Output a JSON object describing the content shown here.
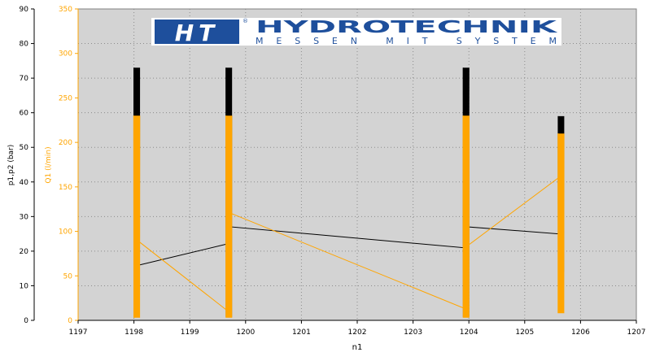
{
  "logo": {
    "brand": "HYDROTECHNIK",
    "tagline": "MESSEN MIT SYSTEM",
    "mark": "HT",
    "registered": "®"
  },
  "colors": {
    "plot_background": "#d3d3d3",
    "pressure_series": "#000000",
    "flow_series": "#ffa500",
    "logo_blue": "#1e4f9c",
    "left_axis_text": "#000000",
    "right_axis_text": "#ffa500"
  },
  "chart_data": {
    "type": "line",
    "xlabel": "n1",
    "ylabel_left": "p1,p2 (bar)",
    "ylabel_right": "Q1 (l/min)",
    "xlim": [
      1197,
      1207
    ],
    "ylim_left": [
      0,
      90
    ],
    "ylim_right": [
      0,
      350
    ],
    "x_ticks": [
      "1197",
      "1198",
      "1199",
      "1200",
      "1201",
      "1202",
      "1203",
      "1204",
      "1205",
      "1206",
      "1207"
    ],
    "y_left_ticks": [
      "0",
      "10",
      "20",
      "30",
      "40",
      "50",
      "60",
      "70",
      "80",
      "90"
    ],
    "y_right_ticks": [
      "0",
      "50",
      "100",
      "150",
      "200",
      "250",
      "300",
      "350"
    ],
    "grid": true,
    "series": [
      {
        "axis": "left",
        "color": "#000000",
        "x": [
          1198.0,
          1198.0,
          1198.1,
          1199.65,
          1199.65,
          1199.75,
          1203.9,
          1203.9,
          1204.0,
          1205.6,
          1205.6,
          1205.7
        ],
        "y": [
          1,
          73,
          16,
          22,
          73,
          27,
          21,
          73,
          27,
          25,
          59,
          25
        ],
        "bursts": [
          {
            "x_start": 1198.0,
            "x_end": 1198.1,
            "y_min": 1,
            "y_max": 73
          },
          {
            "x_start": 1199.65,
            "x_end": 1199.75,
            "y_min": 1,
            "y_max": 73
          },
          {
            "x_start": 1203.9,
            "x_end": 1204.0,
            "y_min": 1,
            "y_max": 73
          },
          {
            "x_start": 1205.6,
            "x_end": 1205.7,
            "y_min": 14,
            "y_max": 59
          }
        ]
      },
      {
        "axis": "right",
        "color": "#ffa500",
        "x": [
          1198.0,
          1198.0,
          1198.1,
          1199.65,
          1199.65,
          1199.75,
          1203.9,
          1203.9,
          1204.0,
          1205.6,
          1205.6,
          1205.7
        ],
        "y": [
          3,
          230,
          88,
          12,
          230,
          120,
          14,
          230,
          85,
          160,
          210,
          150
        ],
        "bursts": [
          {
            "x_start": 1198.0,
            "x_end": 1198.1,
            "y_min": 3,
            "y_max": 230
          },
          {
            "x_start": 1199.65,
            "x_end": 1199.75,
            "y_min": 3,
            "y_max": 230
          },
          {
            "x_start": 1203.9,
            "x_end": 1204.0,
            "y_min": 3,
            "y_max": 230
          },
          {
            "x_start": 1205.6,
            "x_end": 1205.7,
            "y_min": 8,
            "y_max": 210
          }
        ]
      }
    ]
  }
}
